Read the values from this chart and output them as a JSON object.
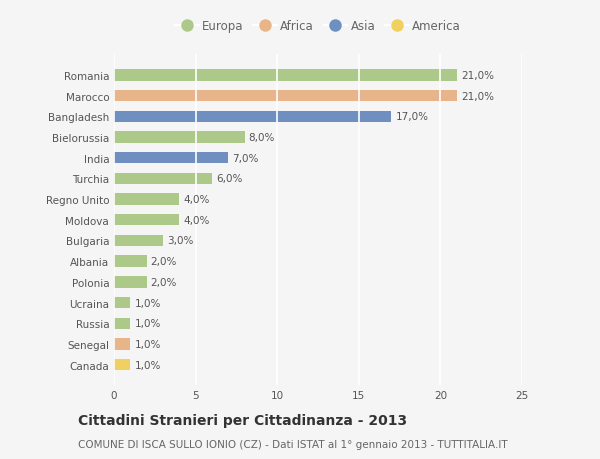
{
  "categories": [
    "Canada",
    "Senegal",
    "Russia",
    "Ucraina",
    "Polonia",
    "Albania",
    "Bulgaria",
    "Moldova",
    "Regno Unito",
    "Turchia",
    "India",
    "Bielorussia",
    "Bangladesh",
    "Marocco",
    "Romania"
  ],
  "values": [
    1.0,
    1.0,
    1.0,
    1.0,
    2.0,
    2.0,
    3.0,
    4.0,
    4.0,
    6.0,
    7.0,
    8.0,
    17.0,
    21.0,
    21.0
  ],
  "continents": [
    "America",
    "Africa",
    "Europa",
    "Europa",
    "Europa",
    "Europa",
    "Europa",
    "Europa",
    "Europa",
    "Europa",
    "Asia",
    "Europa",
    "Asia",
    "Africa",
    "Europa"
  ],
  "labels": [
    "1,0%",
    "1,0%",
    "1,0%",
    "1,0%",
    "2,0%",
    "2,0%",
    "3,0%",
    "4,0%",
    "4,0%",
    "6,0%",
    "7,0%",
    "8,0%",
    "17,0%",
    "21,0%",
    "21,0%"
  ],
  "continent_colors": {
    "Europa": "#adc98a",
    "Africa": "#e8b48a",
    "Asia": "#6e8fc0",
    "America": "#f0d060"
  },
  "legend_order": [
    "Europa",
    "Africa",
    "Asia",
    "America"
  ],
  "title": "Cittadini Stranieri per Cittadinanza - 2013",
  "subtitle": "COMUNE DI ISCA SULLO IONIO (CZ) - Dati ISTAT al 1° gennaio 2013 - TUTTITALIA.IT",
  "xlim": [
    0,
    25
  ],
  "xticks": [
    0,
    5,
    10,
    15,
    20,
    25
  ],
  "background_color": "#f5f5f5",
  "grid_color": "#ffffff",
  "bar_height": 0.55,
  "title_fontsize": 10,
  "subtitle_fontsize": 7.5,
  "label_fontsize": 7.5,
  "tick_fontsize": 7.5,
  "legend_fontsize": 8.5
}
